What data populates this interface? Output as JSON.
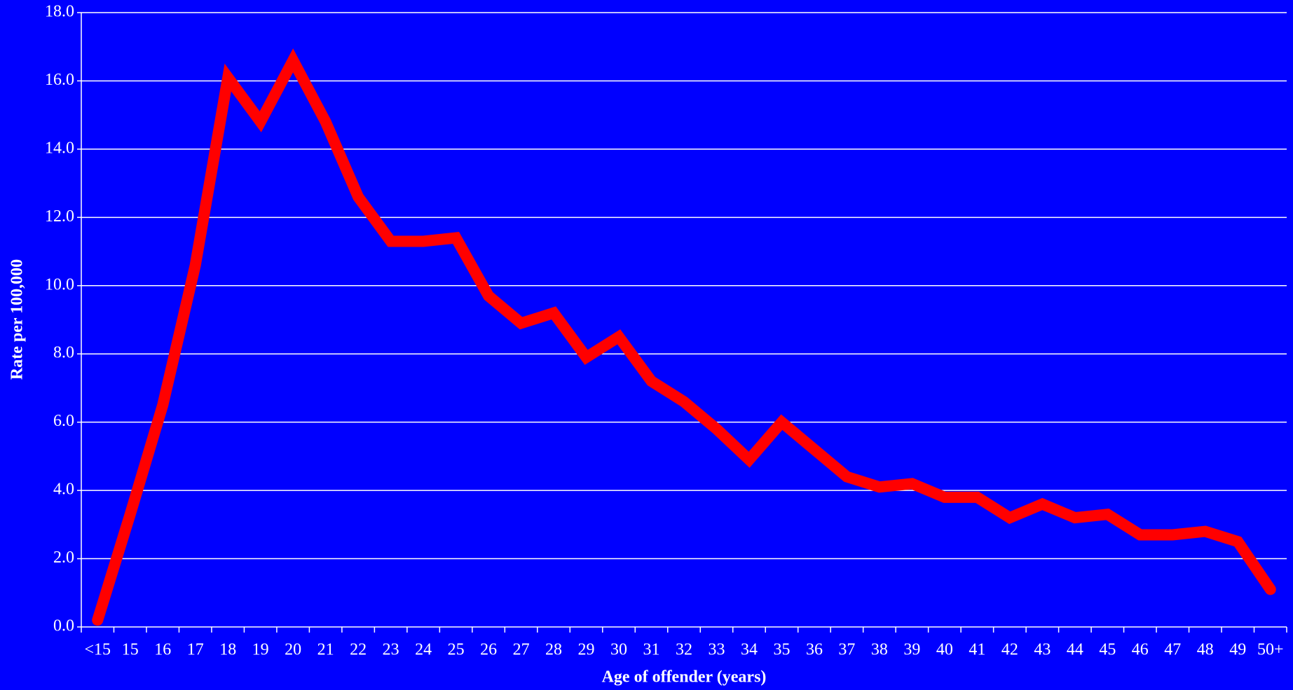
{
  "chart_data": {
    "type": "line",
    "x_label": "Age of offender  (years)",
    "y_label": "Rate per 100,000",
    "categories": [
      "<15",
      "15",
      "16",
      "17",
      "18",
      "19",
      "20",
      "21",
      "22",
      "23",
      "24",
      "25",
      "26",
      "27",
      "28",
      "29",
      "30",
      "31",
      "32",
      "33",
      "34",
      "35",
      "36",
      "37",
      "38",
      "39",
      "40",
      "41",
      "42",
      "43",
      "44",
      "45",
      "46",
      "47",
      "48",
      "49",
      "50+"
    ],
    "series": [
      {
        "color": "#ff0000",
        "values": [
          0.2,
          3.3,
          6.5,
          10.6,
          16.1,
          14.8,
          16.6,
          14.8,
          12.6,
          11.3,
          11.3,
          11.4,
          9.7,
          8.9,
          9.2,
          7.9,
          8.5,
          7.2,
          6.6,
          5.8,
          4.9,
          6.0,
          5.2,
          4.4,
          4.1,
          4.2,
          3.8,
          3.8,
          3.2,
          3.6,
          3.2,
          3.3,
          2.7,
          2.7,
          2.8,
          2.5,
          1.1
        ]
      }
    ],
    "ylim": [
      0,
      18
    ],
    "yticks": [
      {
        "value": 0,
        "label": "0.0"
      },
      {
        "value": 2,
        "label": "2.0"
      },
      {
        "value": 4,
        "label": "4.0"
      },
      {
        "value": 6,
        "label": "6.0"
      },
      {
        "value": 8,
        "label": "8.0"
      },
      {
        "value": 10,
        "label": "10.0"
      },
      {
        "value": 12,
        "label": "12.0"
      },
      {
        "value": 14,
        "label": "14.0"
      },
      {
        "value": 16,
        "label": "16.0"
      },
      {
        "value": 18,
        "label": "18.0"
      }
    ],
    "grid": true
  }
}
